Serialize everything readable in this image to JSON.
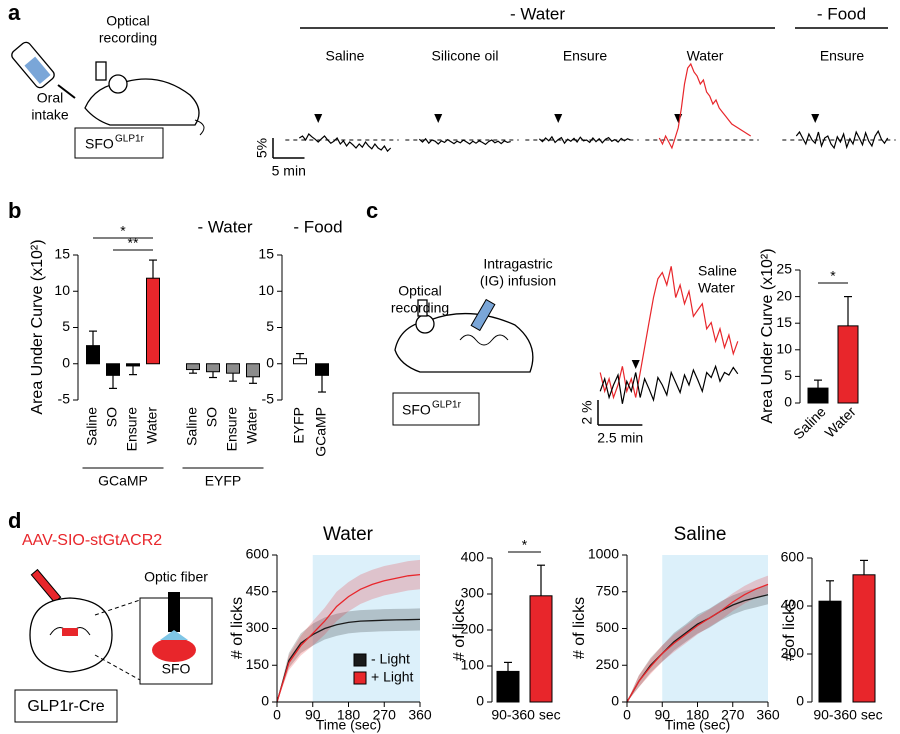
{
  "panel_labels": [
    "a",
    "b",
    "c",
    "d"
  ],
  "diagrams": {
    "a": {
      "recording": [
        "Optical",
        "recording"
      ],
      "intake": [
        "Oral",
        "intake"
      ],
      "region": "SFO",
      "marker": "GLP1r"
    },
    "c": {
      "recording": [
        "Optical",
        "recording"
      ],
      "infusion": [
        "Intragastric",
        "(IG) infusion"
      ],
      "region": "SFO",
      "marker": "GLP1r"
    },
    "d": {
      "virus": "AAV-SIO-stGtACR2",
      "fiber": "Optic fiber",
      "region": "SFO",
      "line": "GLP1r-Cre"
    }
  },
  "chart_data": [
    {
      "type": "trace",
      "dt": 0.5,
      "stimulus": 3,
      "baseline": 0,
      "scalebar": {
        "y": {
          "value": 5,
          "label": "5%"
        },
        "x": {
          "value": 5,
          "label": "5 min"
        }
      },
      "conditions": [
        {
          "name": "- Water",
          "series": [
            {
              "name": "Saline",
              "color": "#000000",
              "values": [
                0.5,
                1,
                0,
                1.5,
                0.8,
                0.2,
                -0.5,
                0.3,
                1,
                0,
                -0.8,
                -0.3,
                0.5,
                -1,
                -0.2,
                -1.5,
                -0.5,
                -1.2,
                -2,
                -1,
                -1.8,
                -0.5,
                -1.5,
                -2.2,
                -1,
                -2,
                -2.5,
                -1.5,
                -2.8,
                -2
              ]
            },
            {
              "name": "Silicone oil",
              "color": "#000000",
              "values": [
                0.2,
                -0.5,
                0.3,
                -0.8,
                0,
                -0.3,
                -1,
                -0.2,
                -0.6,
                0.1,
                -0.4,
                -0.9,
                -0.3,
                -0.7,
                0,
                -0.5,
                -1,
                -0.3,
                -0.8,
                -0.2,
                -0.6,
                -1.1,
                -0.4,
                0,
                -0.7,
                -0.3,
                -0.9,
                -0.2,
                -0.6,
                -0.4
              ]
            },
            {
              "name": "Ensure",
              "color": "#000000",
              "values": [
                0.3,
                -0.4,
                0.5,
                -0.2,
                0.8,
                -0.6,
                0.1,
                0.6,
                -0.8,
                0.2,
                -0.3,
                0.4,
                -0.5,
                0.7,
                -0.2,
                0,
                -0.6,
                0.5,
                -0.4,
                0.3,
                -0.7,
                0.2,
                0.6,
                -0.3,
                0.1,
                -0.5,
                0.4,
                -0.2,
                0.3,
                0
              ]
            },
            {
              "name": "Water",
              "color": "#e8262b",
              "values": [
                0.5,
                -1,
                1,
                -0.5,
                -2,
                0.5,
                3,
                8,
                14,
                18,
                19,
                17,
                16,
                14,
                15,
                12,
                11,
                9,
                10,
                8,
                7,
                6,
                5,
                4,
                3.5,
                3,
                2.5,
                2,
                1.5,
                1
              ]
            }
          ]
        },
        {
          "name": "- Food",
          "series": [
            {
              "name": "Ensure",
              "color": "#000000",
              "values": [
                1,
                2,
                0.5,
                -1,
                1.5,
                0,
                -0.8,
                2,
                -1.5,
                0.5,
                1,
                -1,
                -2,
                0.8,
                -0.5,
                1.5,
                -1.8,
                0.3,
                -1,
                2,
                0.5,
                -1.2,
                1.8,
                -0.3,
                -1.5,
                1,
                2.2,
                0.2,
                -0.8,
                0.5
              ]
            }
          ]
        }
      ]
    },
    {
      "type": "bar",
      "title": "- Water",
      "ylabel": "Area Under Curve (x10²)",
      "ylim": [
        -5,
        15
      ],
      "yticks": [
        -5,
        0,
        5,
        10,
        15
      ],
      "groups": [
        {
          "name": "GCaMP",
          "categories": [
            "Saline",
            "SO",
            "Ensure",
            "Water"
          ],
          "values": [
            2.5,
            -1.6,
            -0.3,
            11.8
          ],
          "errors": [
            2,
            1.8,
            1.2,
            2.5
          ],
          "colors": [
            "#000000",
            "#000000",
            "#000000",
            "#e8262b"
          ],
          "significance": [
            {
              "label": "*",
              "pair": [
                0,
                3
              ]
            },
            {
              "label": "**",
              "pair": [
                1,
                3
              ]
            }
          ]
        },
        {
          "name": "EYFP",
          "categories": [
            "Saline",
            "SO",
            "Ensure",
            "Water"
          ],
          "values": [
            -0.8,
            -1.1,
            -1.3,
            -1.8
          ],
          "errors": [
            0.5,
            0.8,
            1.1,
            0.9
          ],
          "colors": [
            "#8c8c8c",
            "#8c8c8c",
            "#8c8c8c",
            "#8c8c8c"
          ]
        }
      ]
    },
    {
      "type": "bar",
      "title": "- Food",
      "ylim": [
        -5,
        15
      ],
      "yticks": [
        -5,
        0,
        5,
        10,
        15
      ],
      "categories": [
        "EYFP",
        "GCaMP"
      ],
      "values": [
        0.7,
        -1.6
      ],
      "errors": [
        0.7,
        2.3
      ],
      "colors": [
        "#ffffff",
        "#000000"
      ]
    },
    {
      "type": "trace",
      "dt": 0.25,
      "stimulus": 2,
      "scalebar": {
        "y": {
          "value": 2,
          "label": "2 %"
        },
        "x": {
          "value": 2.5,
          "label": "2.5 min"
        }
      },
      "series": [
        {
          "name": "Saline",
          "color": "#000000",
          "values": [
            -0.5,
            0.5,
            -1,
            0,
            0.8,
            -1.5,
            0.3,
            -0.5,
            1,
            -1,
            0.5,
            -0.3,
            -1.2,
            0.6,
            0,
            -0.8,
            1,
            0.2,
            -0.6,
            0.8,
            0,
            1.2,
            0.4,
            -0.5,
            1,
            0.6,
            1.5,
            0.3,
            1,
            0.8,
            1.4,
            0.9
          ]
        },
        {
          "name": "Water",
          "color": "#e8262b",
          "values": [
            1,
            -0.5,
            0.5,
            -1,
            0,
            1.5,
            -0.5,
            0.5,
            -1,
            1,
            3,
            5,
            7,
            8.5,
            9,
            8,
            9.5,
            7,
            8,
            6.5,
            7.5,
            5.5,
            6,
            6.5,
            4.5,
            5,
            3.5,
            4.5,
            3,
            4,
            2.5,
            3.5
          ]
        }
      ]
    },
    {
      "type": "bar",
      "ylabel": "Area Under Curve (x10²)",
      "ylim": [
        0,
        25
      ],
      "yticks": [
        0,
        5,
        10,
        15,
        20,
        25
      ],
      "categories": [
        "Saline",
        "Water"
      ],
      "values": [
        2.8,
        14.5
      ],
      "errors": [
        1.5,
        5.5
      ],
      "colors": [
        "#000000",
        "#e8262b"
      ],
      "significance": [
        {
          "label": "*",
          "pair": [
            0,
            1
          ]
        }
      ]
    },
    {
      "type": "line",
      "title": "Water",
      "xlabel": "Time (sec)",
      "ylabel": "# of licks",
      "xlim": [
        0,
        360
      ],
      "xticks": [
        0,
        90,
        180,
        270,
        360
      ],
      "ylim": [
        0,
        600
      ],
      "yticks": [
        0,
        150,
        300,
        450,
        600
      ],
      "shade": [
        90,
        360
      ],
      "shade_color": "#dcf0fa",
      "legend": "lower right",
      "x": [
        0,
        30,
        60,
        90,
        120,
        150,
        180,
        210,
        240,
        270,
        300,
        330,
        360
      ],
      "series": [
        {
          "name": "- Light",
          "color": "#1a1a1a",
          "values": [
            0,
            170,
            240,
            275,
            300,
            315,
            325,
            330,
            332,
            334,
            335,
            336,
            337
          ],
          "error": [
            0,
            30,
            40,
            45,
            45,
            45,
            45,
            45,
            45,
            45,
            45,
            45,
            45
          ]
        },
        {
          "name": "+ Light",
          "color": "#e8262b",
          "values": [
            0,
            160,
            230,
            280,
            330,
            390,
            430,
            460,
            480,
            495,
            505,
            515,
            520
          ],
          "error": [
            0,
            30,
            40,
            50,
            55,
            60,
            60,
            60,
            60,
            60,
            60,
            60,
            60
          ]
        }
      ]
    },
    {
      "type": "bar",
      "ylabel": "# of licks",
      "xlabel": "90-360 sec",
      "ylim": [
        0,
        400
      ],
      "yticks": [
        0,
        100,
        200,
        300,
        400
      ],
      "categories": [
        null,
        null
      ],
      "values": [
        85,
        295
      ],
      "errors": [
        25,
        85
      ],
      "colors": [
        "#000000",
        "#e8262b"
      ],
      "significance": [
        {
          "label": "*",
          "pair": [
            0,
            1
          ]
        }
      ]
    },
    {
      "type": "line",
      "title": "Saline",
      "xlabel": "Time (sec)",
      "ylabel": "# of licks",
      "xlim": [
        0,
        360
      ],
      "xticks": [
        0,
        90,
        180,
        270,
        360
      ],
      "ylim": [
        0,
        1000
      ],
      "yticks": [
        0,
        250,
        500,
        750,
        1000
      ],
      "shade": [
        90,
        360
      ],
      "shade_color": "#dcf0fa",
      "x": [
        0,
        30,
        60,
        90,
        120,
        150,
        180,
        210,
        240,
        270,
        300,
        330,
        360
      ],
      "series": [
        {
          "name": "- Light",
          "color": "#1a1a1a",
          "values": [
            0,
            140,
            250,
            330,
            410,
            470,
            530,
            570,
            620,
            660,
            690,
            710,
            730
          ],
          "error": [
            0,
            40,
            50,
            55,
            60,
            60,
            65,
            65,
            65,
            65,
            65,
            65,
            65
          ]
        },
        {
          "name": "+ Light",
          "color": "#e8262b",
          "values": [
            0,
            140,
            240,
            330,
            400,
            460,
            520,
            570,
            620,
            680,
            730,
            770,
            800
          ],
          "error": [
            0,
            40,
            50,
            55,
            60,
            60,
            60,
            60,
            60,
            60,
            60,
            60,
            60
          ]
        }
      ]
    },
    {
      "type": "bar",
      "ylabel": "# of licks",
      "xlabel": "90-360 sec",
      "ylim": [
        0,
        600
      ],
      "yticks": [
        0,
        200,
        400,
        600
      ],
      "categories": [
        null,
        null
      ],
      "values": [
        420,
        530
      ],
      "errors": [
        85,
        60
      ],
      "colors": [
        "#000000",
        "#e8262b"
      ]
    }
  ]
}
